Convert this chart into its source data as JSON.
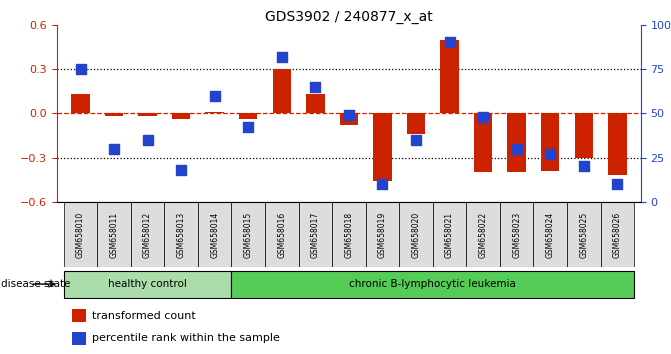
{
  "title": "GDS3902 / 240877_x_at",
  "samples": [
    "GSM658010",
    "GSM658011",
    "GSM658012",
    "GSM658013",
    "GSM658014",
    "GSM658015",
    "GSM658016",
    "GSM658017",
    "GSM658018",
    "GSM658019",
    "GSM658020",
    "GSM658021",
    "GSM658022",
    "GSM658023",
    "GSM658024",
    "GSM658025",
    "GSM658026"
  ],
  "red_values": [
    0.13,
    -0.02,
    -0.02,
    -0.04,
    0.01,
    -0.04,
    0.3,
    0.13,
    -0.08,
    -0.46,
    -0.14,
    0.5,
    -0.4,
    -0.4,
    -0.39,
    -0.3,
    -0.42
  ],
  "blue_values_pct": [
    75,
    30,
    35,
    18,
    60,
    42,
    82,
    65,
    49,
    10,
    35,
    90,
    48,
    30,
    27,
    20,
    10
  ],
  "n_healthy": 5,
  "n_leukemia": 12,
  "ylim_left": [
    -0.6,
    0.6
  ],
  "ylim_right": [
    0,
    100
  ],
  "yticks_left": [
    -0.6,
    -0.3,
    0.0,
    0.3,
    0.6
  ],
  "yticks_right": [
    0,
    25,
    50,
    75,
    100
  ],
  "hline_dotted": [
    -0.3,
    0.3
  ],
  "hline_dashed": [
    0.0
  ],
  "red_color": "#cc2200",
  "blue_color": "#2244cc",
  "healthy_color": "#aaddaa",
  "leukemia_color": "#55cc55",
  "cell_color": "#dddddd",
  "bg_color": "#ffffff",
  "bar_width": 0.55,
  "disease_state_label": "disease state",
  "healthy_label": "healthy control",
  "leukemia_label": "chronic B-lymphocytic leukemia",
  "legend_red": "transformed count",
  "legend_blue": "percentile rank within the sample"
}
